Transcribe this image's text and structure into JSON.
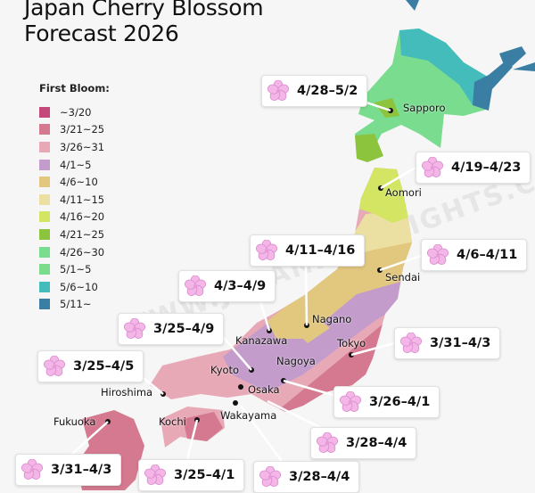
{
  "title_line1": "Japan Cherry Blossom",
  "title_line2": "Forecast 2026",
  "watermark": "WWW.JAPANHIGHLIGHTS.COM",
  "legend": {
    "title": "First Bloom:",
    "items": [
      {
        "label": "~3/20",
        "color": "#c4487a"
      },
      {
        "label": "3/21~25",
        "color": "#d4798f"
      },
      {
        "label": "3/26~31",
        "color": "#e8a9b7"
      },
      {
        "label": "4/1~5",
        "color": "#c39ccb"
      },
      {
        "label": "4/6~10",
        "color": "#e2c77f"
      },
      {
        "label": "4/11~15",
        "color": "#ebe0a2"
      },
      {
        "label": "4/16~20",
        "color": "#d3e562"
      },
      {
        "label": "4/21~25",
        "color": "#8cc43d"
      },
      {
        "label": "4/26~30",
        "color": "#79dc8f"
      },
      {
        "label": "5/1~5",
        "color": "#7bdc8c"
      },
      {
        "label": "5/6~10",
        "color": "#45bcbc"
      },
      {
        "label": "5/11~",
        "color": "#3a7fa3"
      }
    ]
  },
  "flower_icon": "cherry-blossom-icon",
  "cities": [
    {
      "name": "Sapporo",
      "forecast": "4/28–5/2"
    },
    {
      "name": "Aomori",
      "forecast": "4/19–4/23"
    },
    {
      "name": "Nagano",
      "forecast": "4/11–4/16"
    },
    {
      "name": "Sendai",
      "forecast": "4/6–4/11"
    },
    {
      "name": "Kanazawa",
      "forecast": "4/3–4/9"
    },
    {
      "name": "Kyoto",
      "forecast": "3/25–4/9"
    },
    {
      "name": "Tokyo",
      "forecast": "3/31–4/3"
    },
    {
      "name": "Hiroshima",
      "forecast": "3/25–4/5"
    },
    {
      "name": "Nagoya",
      "forecast": "3/26–4/1"
    },
    {
      "name": "Osaka",
      "forecast": "3/28–4/4"
    },
    {
      "name": "Wakayama",
      "forecast": "3/28–4/4"
    },
    {
      "name": "Fukuoka",
      "forecast": "3/31–4/3"
    },
    {
      "name": "Kochi",
      "forecast": "3/25–4/1"
    }
  ]
}
